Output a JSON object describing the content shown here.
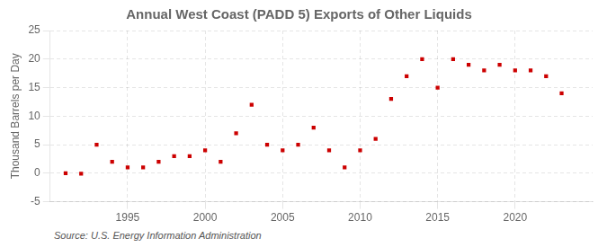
{
  "chart_data": {
    "type": "scatter",
    "title": "Annual West Coast (PADD 5) Exports of Other Liquids",
    "ylabel": "Thousand Barrels per Day",
    "source": "Source: U.S. Energy Information Administration",
    "x": [
      1991,
      1992,
      1993,
      1994,
      1995,
      1996,
      1997,
      1998,
      1999,
      2000,
      2001,
      2002,
      2003,
      2004,
      2005,
      2006,
      2007,
      2008,
      2009,
      2010,
      2011,
      2012,
      2013,
      2014,
      2015,
      2016,
      2017,
      2018,
      2019,
      2020,
      2021,
      2022,
      2023
    ],
    "values": [
      0,
      -0.1,
      5,
      2,
      1,
      1,
      2,
      3,
      3,
      4,
      2,
      7,
      12,
      5,
      4,
      5,
      8,
      4,
      1,
      4,
      6,
      13,
      17,
      20,
      15,
      20,
      19,
      18,
      19,
      18,
      18,
      17,
      14
    ],
    "color": "#cc0000",
    "marker": "square",
    "xlim": [
      1990,
      2025
    ],
    "xticks": [
      1995,
      2000,
      2005,
      2010,
      2015,
      2020
    ],
    "ylim": [
      -5,
      25
    ],
    "yticks": [
      -5,
      0,
      5,
      10,
      15,
      20,
      25
    ],
    "grid": true
  }
}
